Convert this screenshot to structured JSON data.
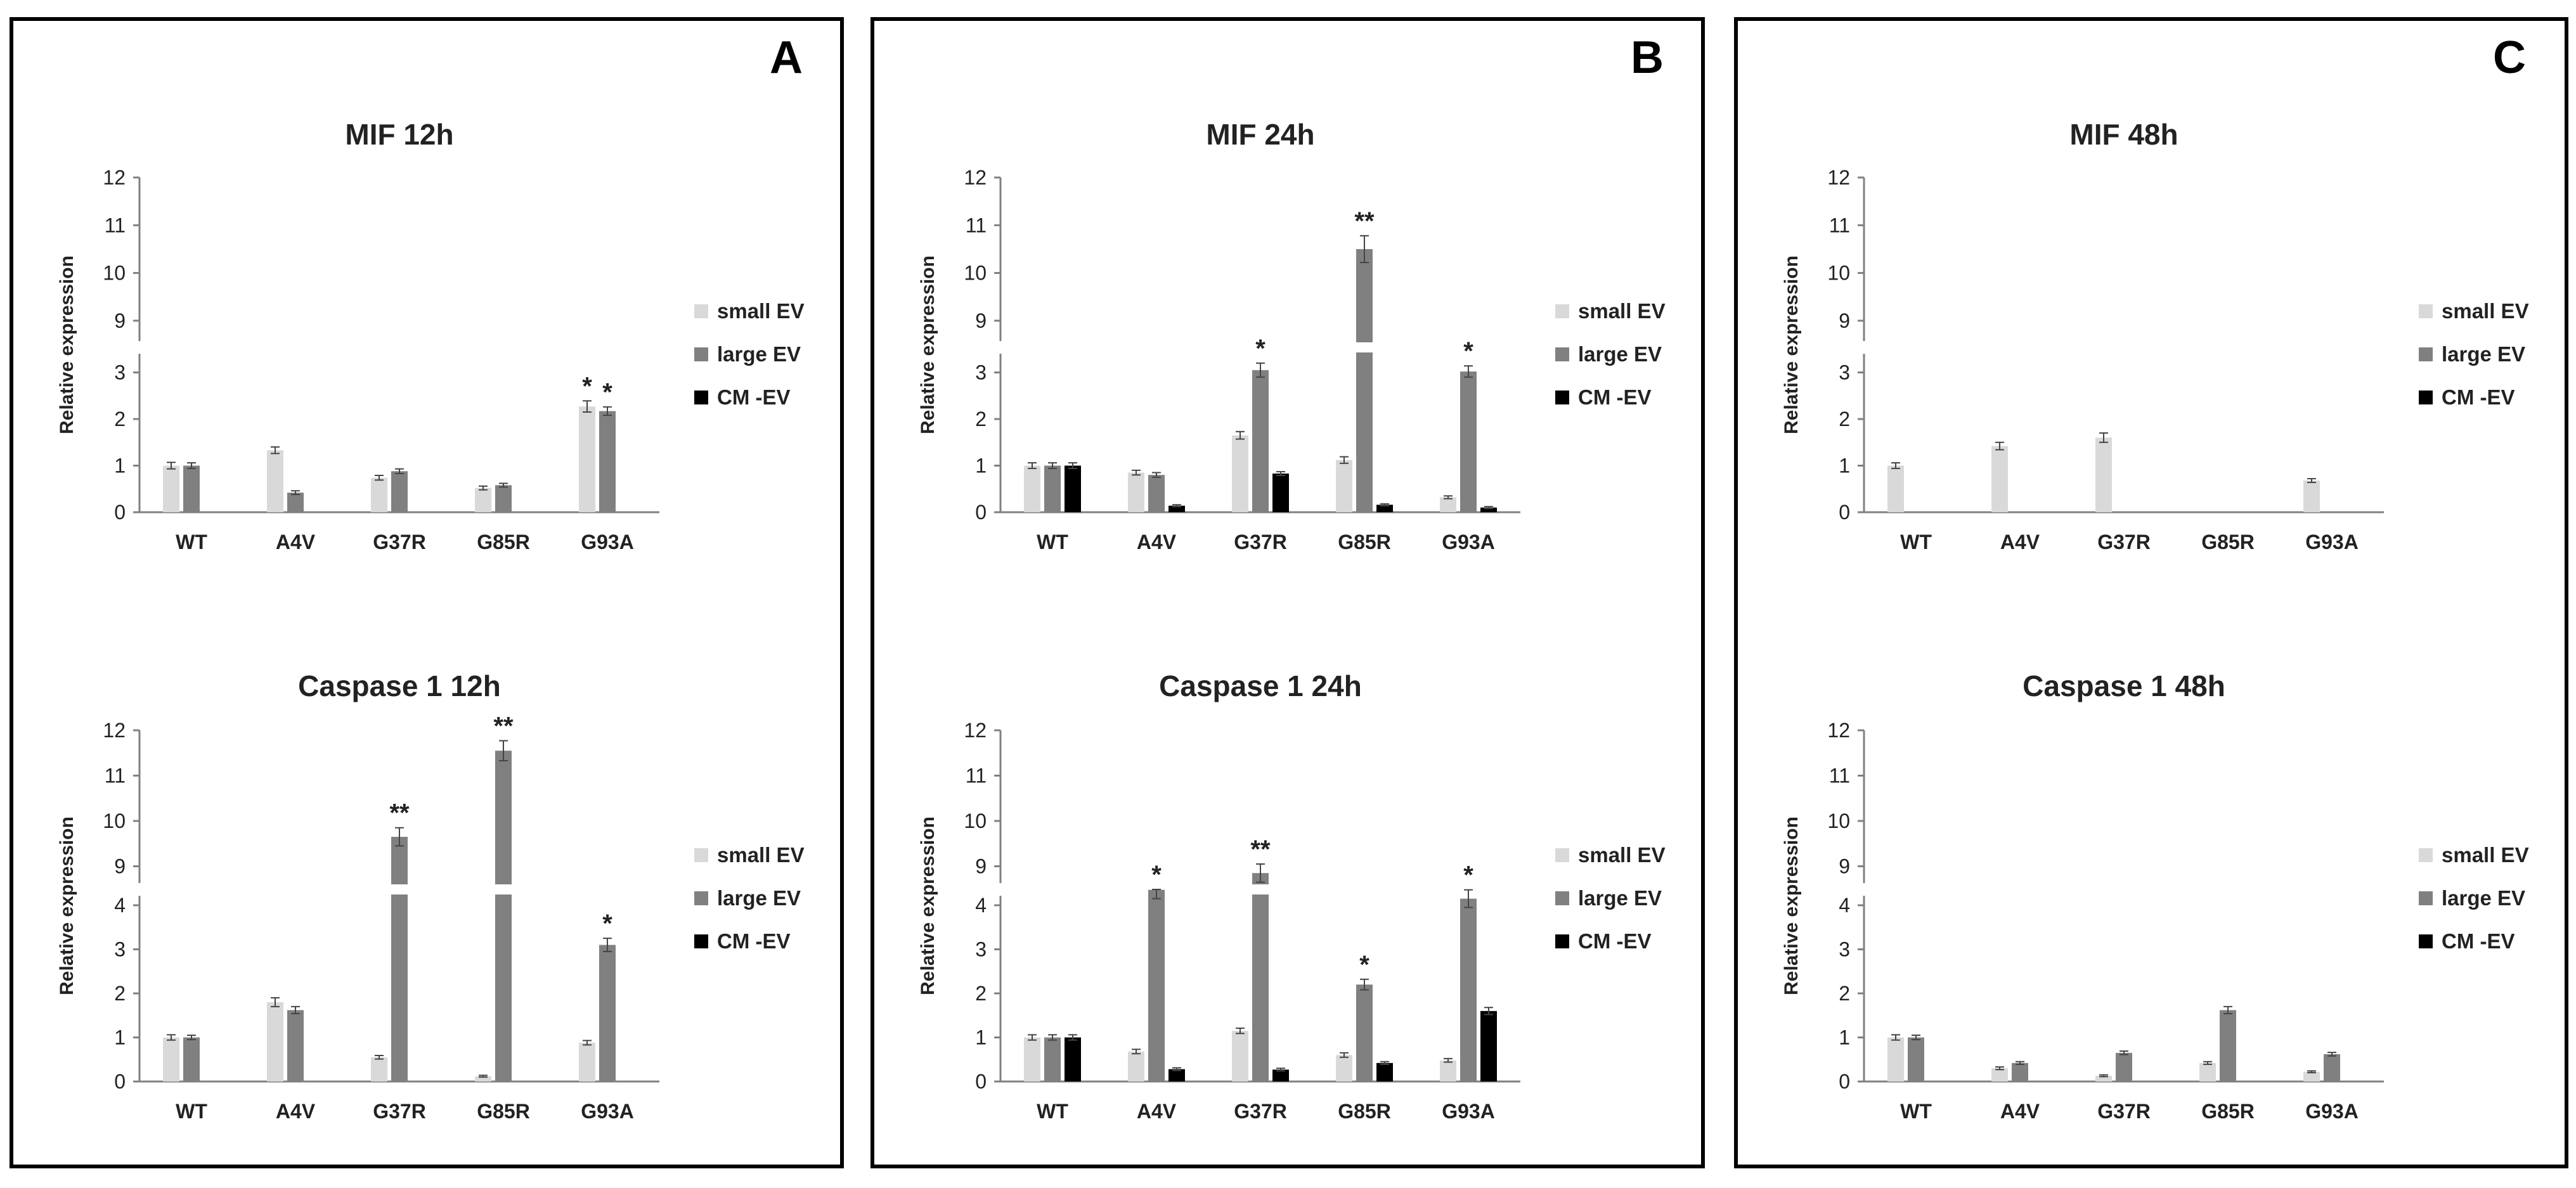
{
  "figure": {
    "colors": {
      "small_ev": "#d9d9d9",
      "large_ev": "#808080",
      "cm_ev": "#000000",
      "axis": "#808080",
      "frame": "#000000"
    },
    "series_names": [
      "small EV",
      "large EV",
      "CM -EV"
    ],
    "panel_letters": [
      "A",
      "B",
      "C"
    ]
  },
  "chart_data": [
    {
      "id": "mif-12h",
      "panel": "A",
      "type": "bar",
      "title": "MIF 12h",
      "ylabel": "Relative expression",
      "axis_break": [
        4,
        8.5
      ],
      "lower_ticks": [
        0,
        1,
        2,
        3
      ],
      "upper_ticks": [
        9,
        10,
        11,
        12
      ],
      "categories": [
        "WT",
        "A4V",
        "G37R",
        "G85R",
        "G93A"
      ],
      "legend": [
        "small EV",
        "large EV",
        "CM -EV"
      ],
      "series": [
        {
          "name": "small EV",
          "values": [
            1.0,
            1.33,
            0.74,
            0.52,
            2.27
          ],
          "errors": [
            0.07,
            0.07,
            0.05,
            0.04,
            0.12
          ]
        },
        {
          "name": "large EV",
          "values": [
            1.0,
            0.42,
            0.88,
            0.58,
            2.17
          ],
          "errors": [
            0.06,
            0.04,
            0.05,
            0.04,
            0.09
          ]
        }
      ],
      "significance": [
        {
          "category": "G93A",
          "series": "small EV",
          "label": "*"
        },
        {
          "category": "G93A",
          "series": "large EV",
          "label": "*"
        }
      ]
    },
    {
      "id": "caspase1-12h",
      "panel": "A",
      "type": "bar",
      "title": "Caspase 1 12h",
      "ylabel": "Relative expression",
      "axis_break": [
        4.5,
        8.5
      ],
      "lower_ticks": [
        0,
        1,
        2,
        3,
        4
      ],
      "upper_ticks": [
        9,
        10,
        11,
        12
      ],
      "categories": [
        "WT",
        "A4V",
        "G37R",
        "G85R",
        "G93A"
      ],
      "legend": [
        "small EV",
        "large EV",
        "CM -EV"
      ],
      "series": [
        {
          "name": "small EV",
          "values": [
            1.0,
            1.8,
            0.55,
            0.12,
            0.88
          ],
          "errors": [
            0.06,
            0.1,
            0.04,
            0.02,
            0.05
          ]
        },
        {
          "name": "large EV",
          "values": [
            1.0,
            1.62,
            9.65,
            11.55,
            3.1
          ],
          "errors": [
            0.05,
            0.08,
            0.2,
            0.22,
            0.15
          ]
        }
      ],
      "significance": [
        {
          "category": "G37R",
          "series": "large EV",
          "label": "**"
        },
        {
          "category": "G85R",
          "series": "large EV",
          "label": "**"
        },
        {
          "category": "G93A",
          "series": "large EV",
          "label": "*"
        }
      ]
    },
    {
      "id": "mif-24h",
      "panel": "B",
      "type": "bar",
      "title": "MIF 24h",
      "ylabel": "Relative expression",
      "axis_break": [
        3.6,
        8.5
      ],
      "lower_ticks": [
        0,
        1,
        2,
        3
      ],
      "upper_ticks": [
        9,
        10,
        11,
        12
      ],
      "categories": [
        "WT",
        "A4V",
        "G37R",
        "G85R",
        "G93A"
      ],
      "legend": [
        "small EV",
        "large EV",
        "CM -EV"
      ],
      "series": [
        {
          "name": "small EV",
          "values": [
            1.0,
            0.85,
            1.65,
            1.12,
            0.32
          ],
          "errors": [
            0.06,
            0.05,
            0.08,
            0.07,
            0.03
          ]
        },
        {
          "name": "large EV",
          "values": [
            1.0,
            0.8,
            3.05,
            10.5,
            3.02
          ],
          "errors": [
            0.06,
            0.05,
            0.15,
            0.28,
            0.12
          ]
        },
        {
          "name": "CM -EV",
          "values": [
            1.0,
            0.14,
            0.83,
            0.16,
            0.1
          ],
          "errors": [
            0.06,
            0.02,
            0.04,
            0.02,
            0.02
          ]
        }
      ],
      "significance": [
        {
          "category": "G37R",
          "series": "large EV",
          "label": "*"
        },
        {
          "category": "G85R",
          "series": "large EV",
          "label": "**"
        },
        {
          "category": "G93A",
          "series": "large EV",
          "label": "*"
        }
      ]
    },
    {
      "id": "caspase1-24h",
      "panel": "B",
      "type": "bar",
      "title": "Caspase 1 24h",
      "ylabel": "Relative expression",
      "axis_break": [
        4.5,
        8.5
      ],
      "lower_ticks": [
        0,
        1,
        2,
        3,
        4
      ],
      "upper_ticks": [
        9,
        10,
        11,
        12
      ],
      "categories": [
        "WT",
        "A4V",
        "G37R",
        "G85R",
        "G93A"
      ],
      "legend": [
        "small EV",
        "large EV",
        "CM -EV"
      ],
      "series": [
        {
          "name": "small EV",
          "values": [
            1.0,
            0.68,
            1.15,
            0.6,
            0.48
          ],
          "errors": [
            0.06,
            0.05,
            0.06,
            0.05,
            0.04
          ]
        },
        {
          "name": "large EV",
          "values": [
            1.0,
            4.35,
            8.85,
            2.2,
            4.15
          ],
          "errors": [
            0.06,
            0.2,
            0.2,
            0.12,
            0.2
          ]
        },
        {
          "name": "CM -EV",
          "values": [
            1.0,
            0.28,
            0.27,
            0.42,
            1.6
          ],
          "errors": [
            0.06,
            0.03,
            0.03,
            0.03,
            0.08
          ]
        }
      ],
      "significance": [
        {
          "category": "A4V",
          "series": "large EV",
          "label": "*"
        },
        {
          "category": "G37R",
          "series": "large EV",
          "label": "**"
        },
        {
          "category": "G85R",
          "series": "large EV",
          "label": "*"
        },
        {
          "category": "G93A",
          "series": "large EV",
          "label": "*"
        }
      ]
    },
    {
      "id": "mif-48h",
      "panel": "C",
      "type": "bar",
      "title": "MIF 48h",
      "ylabel": "Relative expression",
      "axis_break": [
        3.6,
        8.5
      ],
      "lower_ticks": [
        0,
        1,
        2,
        3
      ],
      "upper_ticks": [
        9,
        10,
        11,
        12
      ],
      "categories": [
        "WT",
        "A4V",
        "G37R",
        "G85R",
        "G93A"
      ],
      "legend": [
        "small EV",
        "large EV",
        "CM -EV"
      ],
      "series": [
        {
          "name": "small EV",
          "values": [
            1.0,
            1.42,
            1.6,
            0,
            0.68
          ],
          "errors": [
            0.06,
            0.08,
            0.1,
            0,
            0.04
          ]
        }
      ],
      "significance": []
    },
    {
      "id": "caspase1-48h",
      "panel": "C",
      "type": "bar",
      "title": "Caspase 1 48h",
      "ylabel": "Relative expression",
      "axis_break": [
        4.5,
        8.5
      ],
      "lower_ticks": [
        0,
        1,
        2,
        3,
        4
      ],
      "upper_ticks": [
        9,
        10,
        11,
        12
      ],
      "categories": [
        "WT",
        "A4V",
        "G37R",
        "G85R",
        "G93A"
      ],
      "legend": [
        "small EV",
        "large EV",
        "CM -EV"
      ],
      "series": [
        {
          "name": "small EV",
          "values": [
            1.0,
            0.3,
            0.13,
            0.42,
            0.22
          ],
          "errors": [
            0.06,
            0.03,
            0.02,
            0.03,
            0.02
          ]
        },
        {
          "name": "large EV",
          "values": [
            1.0,
            0.42,
            0.65,
            1.62,
            0.62
          ],
          "errors": [
            0.05,
            0.03,
            0.04,
            0.08,
            0.04
          ]
        }
      ],
      "significance": []
    }
  ]
}
